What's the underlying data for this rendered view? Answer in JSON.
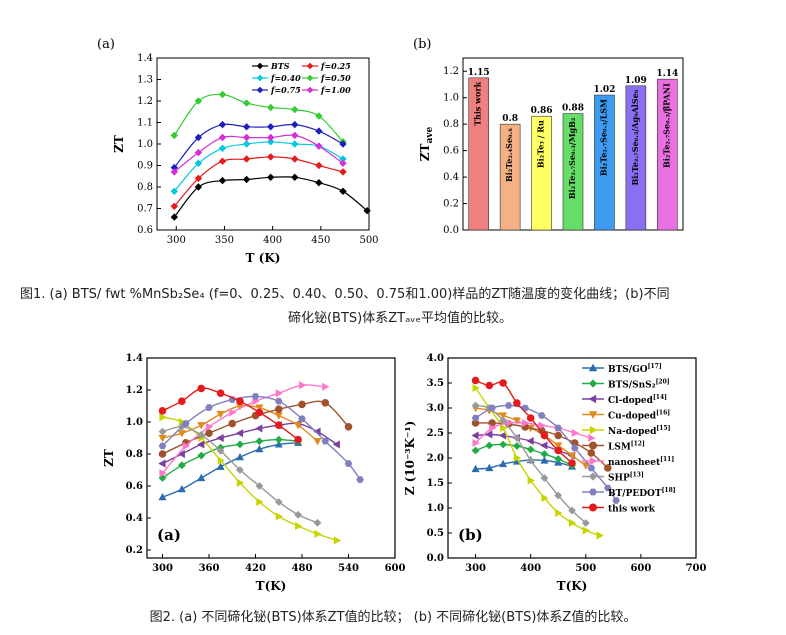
{
  "captions": {
    "fig1_line1": "图1. (a) BTS/ fwt %MnSb₂Se₄ (f=0、0.25、0.40、0.50、0.75和1.00)样品的ZT随温度的变化曲线；(b)不同",
    "fig1_line2": "碲化铋(BTS)体系ZTₐᵥₑ平均值的比较。",
    "fig2": "图2. (a) 不同碲化铋(BTS)体系ZT值的比较；  (b) 不同碲化铋(BTS)体系Z值的比较。"
  },
  "chart_data": [
    {
      "panel": "(a)",
      "type": "line",
      "xlabel": "T (K)",
      "ylabel": "ZT",
      "xlim": [
        280,
        500
      ],
      "ylim": [
        0.6,
        1.4
      ],
      "xticks": [
        300,
        350,
        400,
        450,
        500
      ],
      "yticks": [
        0.6,
        0.7,
        0.8,
        0.9,
        1.0,
        1.1,
        1.2,
        1.3,
        1.4
      ],
      "legend_position": "top-right",
      "x": [
        298,
        323,
        348,
        373,
        398,
        423,
        448,
        473
      ],
      "series": [
        {
          "name": "BTS",
          "color": "#000000",
          "marker": "diamond",
          "x": [
            298,
            323,
            348,
            373,
            398,
            423,
            448,
            473,
            498
          ],
          "values": [
            0.66,
            0.8,
            0.83,
            0.835,
            0.845,
            0.845,
            0.82,
            0.78,
            0.69
          ]
        },
        {
          "name": "f=0.25",
          "color": "#e41a1c",
          "marker": "diamond",
          "values": [
            0.71,
            0.84,
            0.92,
            0.93,
            0.94,
            0.93,
            0.9,
            0.87
          ]
        },
        {
          "name": "f=0.40",
          "color": "#00c8e0",
          "marker": "diamond",
          "values": [
            0.78,
            0.91,
            0.98,
            1.0,
            1.01,
            1.0,
            0.99,
            0.93
          ]
        },
        {
          "name": "f=0.50",
          "color": "#33cc33",
          "marker": "diamond",
          "values": [
            1.04,
            1.2,
            1.23,
            1.19,
            1.17,
            1.16,
            1.13,
            1.01
          ]
        },
        {
          "name": "f=0.75",
          "color": "#1f1fbf",
          "marker": "diamond",
          "values": [
            0.89,
            1.03,
            1.09,
            1.08,
            1.08,
            1.09,
            1.06,
            1.0
          ]
        },
        {
          "name": "f=1.00",
          "color": "#d62fd6",
          "marker": "diamond",
          "values": [
            0.87,
            0.96,
            1.03,
            1.03,
            1.03,
            1.04,
            0.99,
            0.91
          ]
        }
      ]
    },
    {
      "panel": "(b)",
      "type": "bar",
      "ylabel": "ZT_ave",
      "ylim": [
        0,
        1.3
      ],
      "yticks": [
        0.0,
        0.2,
        0.4,
        0.6,
        0.8,
        1.0,
        1.2
      ],
      "bars": [
        {
          "category": "This work",
          "value": 1.15,
          "label": "1.15",
          "color": "#f08080"
        },
        {
          "category": "Bi₂Te₂.₄Se₀.₆",
          "value": 0.8,
          "label": "0.8",
          "color": "#f4b183"
        },
        {
          "category": "Bi₂Te₃ / Ru",
          "value": 0.86,
          "label": "0.86",
          "color": "#ffff66"
        },
        {
          "category": "Bi₂Te₂.₇Se₀.₃/MgB₂",
          "value": 0.88,
          "label": "0.88",
          "color": "#66dd66"
        },
        {
          "category": "Bi₂Te₂.₇Se₀.₃/LSM",
          "value": 1.02,
          "label": "1.02",
          "color": "#3d9bf0"
        },
        {
          "category": "Bi₂Te₂.₇Se₀.₃/Ag₉AlSe₆",
          "value": 1.09,
          "label": "1.09",
          "color": "#8b6ff0"
        },
        {
          "category": "Bi₂Te₂.₇Se₀.₃/βPANI",
          "value": 1.14,
          "label": "1.14",
          "color": "#e870e0"
        }
      ]
    },
    {
      "panel": "(a)",
      "type": "line",
      "xlabel": "T(K)",
      "ylabel": "ZT",
      "xlim": [
        280,
        600
      ],
      "ylim": [
        0.15,
        1.4
      ],
      "xticks": [
        300,
        360,
        420,
        480,
        540,
        600
      ],
      "yticks": [
        0.2,
        0.4,
        0.6,
        0.8,
        1.0,
        1.2,
        1.4
      ],
      "series": [
        {
          "name": "BTS/GO",
          "color": "#2b6cb0",
          "marker": "triangle-up",
          "x": [
            300,
            325,
            350,
            375,
            400,
            425,
            450,
            475
          ],
          "values": [
            0.53,
            0.58,
            0.65,
            0.72,
            0.78,
            0.83,
            0.86,
            0.87
          ]
        },
        {
          "name": "BTS/SnS₂",
          "color": "#22aa44",
          "marker": "diamond",
          "x": [
            300,
            325,
            350,
            375,
            400,
            425,
            450,
            475
          ],
          "values": [
            0.65,
            0.73,
            0.79,
            0.84,
            0.86,
            0.88,
            0.89,
            0.88
          ]
        },
        {
          "name": "Cl-doped",
          "color": "#7b3fa0",
          "marker": "triangle-left",
          "x": [
            300,
            325,
            350,
            375,
            400,
            425,
            450,
            475,
            500,
            525
          ],
          "values": [
            0.74,
            0.8,
            0.86,
            0.9,
            0.93,
            0.96,
            0.98,
            0.99,
            0.94,
            0.86
          ]
        },
        {
          "name": "Cu-doped",
          "color": "#e08a1e",
          "marker": "triangle-down",
          "x": [
            300,
            325,
            350,
            375,
            400,
            425,
            450,
            475,
            500
          ],
          "values": [
            0.9,
            0.93,
            0.98,
            1.05,
            1.1,
            1.09,
            1.04,
            0.98,
            0.88
          ]
        },
        {
          "name": "Na-doped",
          "color": "#c8d400",
          "marker": "triangle-right",
          "x": [
            300,
            325,
            350,
            375,
            400,
            425,
            450,
            475,
            500,
            525
          ],
          "values": [
            1.03,
            1.0,
            0.9,
            0.76,
            0.62,
            0.5,
            0.41,
            0.35,
            0.3,
            0.26
          ]
        },
        {
          "name": "LSM",
          "color": "#a0522d",
          "marker": "circle",
          "x": [
            300,
            330,
            360,
            390,
            420,
            450,
            480,
            510,
            540
          ],
          "values": [
            0.8,
            0.87,
            0.93,
            0.99,
            1.04,
            1.08,
            1.11,
            1.12,
            0.97
          ]
        },
        {
          "name": "nanosheet",
          "color": "#ff77cc",
          "marker": "triangle-right",
          "x": [
            300,
            330,
            360,
            390,
            420,
            450,
            480,
            510
          ],
          "values": [
            0.68,
            0.85,
            0.97,
            1.06,
            1.13,
            1.18,
            1.23,
            1.22
          ]
        },
        {
          "name": "SHP",
          "color": "#999999",
          "marker": "diamond",
          "x": [
            300,
            325,
            350,
            375,
            400,
            425,
            450,
            475,
            500
          ],
          "values": [
            0.94,
            0.97,
            0.92,
            0.82,
            0.7,
            0.6,
            0.5,
            0.42,
            0.37
          ]
        },
        {
          "name": "BT/PEDOT",
          "color": "#8080c0",
          "marker": "hexagon",
          "x": [
            300,
            330,
            360,
            390,
            420,
            450,
            480,
            510,
            540,
            555
          ],
          "values": [
            0.85,
            0.99,
            1.09,
            1.14,
            1.16,
            1.13,
            1.02,
            0.88,
            0.74,
            0.64
          ]
        },
        {
          "name": "this work",
          "color": "#e41a1c",
          "marker": "circle",
          "x": [
            300,
            325,
            350,
            375,
            400,
            425,
            450,
            475
          ],
          "values": [
            1.07,
            1.13,
            1.21,
            1.18,
            1.13,
            1.06,
            0.98,
            0.89
          ]
        }
      ]
    },
    {
      "panel": "(b)",
      "type": "line",
      "xlabel": "T(K)",
      "ylabel": "Z (10⁻³K⁻¹)",
      "xlim": [
        250,
        700
      ],
      "ylim": [
        0,
        4.0
      ],
      "xticks": [
        300,
        400,
        500,
        600,
        700
      ],
      "yticks": [
        0.0,
        0.5,
        1.0,
        1.5,
        2.0,
        2.5,
        3.0,
        3.5,
        4.0
      ],
      "legend_position": "top-right",
      "series": [
        {
          "name": "BTS/GO",
          "sup": "[17]",
          "color": "#2b6cb0",
          "marker": "triangle-up",
          "x": [
            300,
            325,
            350,
            375,
            400,
            425,
            450,
            475
          ],
          "values": [
            1.78,
            1.8,
            1.88,
            1.93,
            1.96,
            1.95,
            1.91,
            1.83
          ]
        },
        {
          "name": "BTS/SnS₂",
          "sup": "[20]",
          "color": "#22aa44",
          "marker": "diamond",
          "x": [
            300,
            325,
            350,
            375,
            400,
            425,
            450,
            475
          ],
          "values": [
            2.15,
            2.25,
            2.27,
            2.24,
            2.17,
            2.08,
            1.98,
            1.85
          ]
        },
        {
          "name": "Cl-doped",
          "sup": "[14]",
          "color": "#7b3fa0",
          "marker": "triangle-left",
          "x": [
            300,
            325,
            350,
            375,
            400,
            425,
            450,
            475
          ],
          "values": [
            2.45,
            2.47,
            2.45,
            2.4,
            2.34,
            2.25,
            2.15,
            2.05
          ]
        },
        {
          "name": "Cu-doped",
          "sup": "[16]",
          "color": "#e08a1e",
          "marker": "triangle-down",
          "x": [
            300,
            325,
            350,
            375,
            400,
            425,
            450,
            475,
            500
          ],
          "values": [
            3.0,
            2.95,
            2.85,
            2.75,
            2.6,
            2.45,
            2.25,
            2.05,
            1.85
          ]
        },
        {
          "name": "Na-doped",
          "sup": "[15]",
          "color": "#c8d400",
          "marker": "triangle-right",
          "x": [
            300,
            325,
            350,
            375,
            400,
            425,
            450,
            475,
            500,
            525
          ],
          "values": [
            3.4,
            3.0,
            2.6,
            2.0,
            1.55,
            1.2,
            0.9,
            0.7,
            0.55,
            0.45
          ]
        },
        {
          "name": "LSM",
          "sup": "[12]",
          "color": "#a0522d",
          "marker": "circle",
          "x": [
            300,
            330,
            360,
            390,
            420,
            450,
            480,
            510,
            540
          ],
          "values": [
            2.7,
            2.7,
            2.68,
            2.62,
            2.55,
            2.45,
            2.3,
            2.1,
            1.8
          ]
        },
        {
          "name": "nanosheet",
          "sup": "[11]",
          "color": "#ff77cc",
          "marker": "triangle-right",
          "x": [
            300,
            330,
            360,
            390,
            420,
            450,
            480,
            510
          ],
          "values": [
            2.3,
            2.6,
            2.7,
            2.7,
            2.65,
            2.6,
            2.5,
            2.4
          ]
        },
        {
          "name": "SHP",
          "sup": "[13]",
          "color": "#999999",
          "marker": "diamond",
          "x": [
            300,
            325,
            350,
            375,
            400,
            425,
            450,
            475,
            500
          ],
          "values": [
            3.05,
            3.0,
            2.75,
            2.4,
            1.95,
            1.6,
            1.25,
            0.95,
            0.7
          ]
        },
        {
          "name": "BT/PEDOT",
          "sup": "[18]",
          "color": "#8080c0",
          "marker": "hexagon",
          "x": [
            300,
            330,
            360,
            390,
            420,
            450,
            480,
            510,
            540,
            555
          ],
          "values": [
            2.8,
            3.0,
            3.05,
            3.0,
            2.85,
            2.6,
            2.2,
            1.8,
            1.4,
            1.15
          ]
        },
        {
          "name": "this work",
          "sup": "",
          "color": "#e41a1c",
          "marker": "circle",
          "x": [
            300,
            325,
            350,
            375,
            400,
            425,
            450,
            475
          ],
          "values": [
            3.55,
            3.45,
            3.5,
            3.1,
            2.8,
            2.45,
            2.15,
            1.9
          ]
        }
      ]
    }
  ]
}
